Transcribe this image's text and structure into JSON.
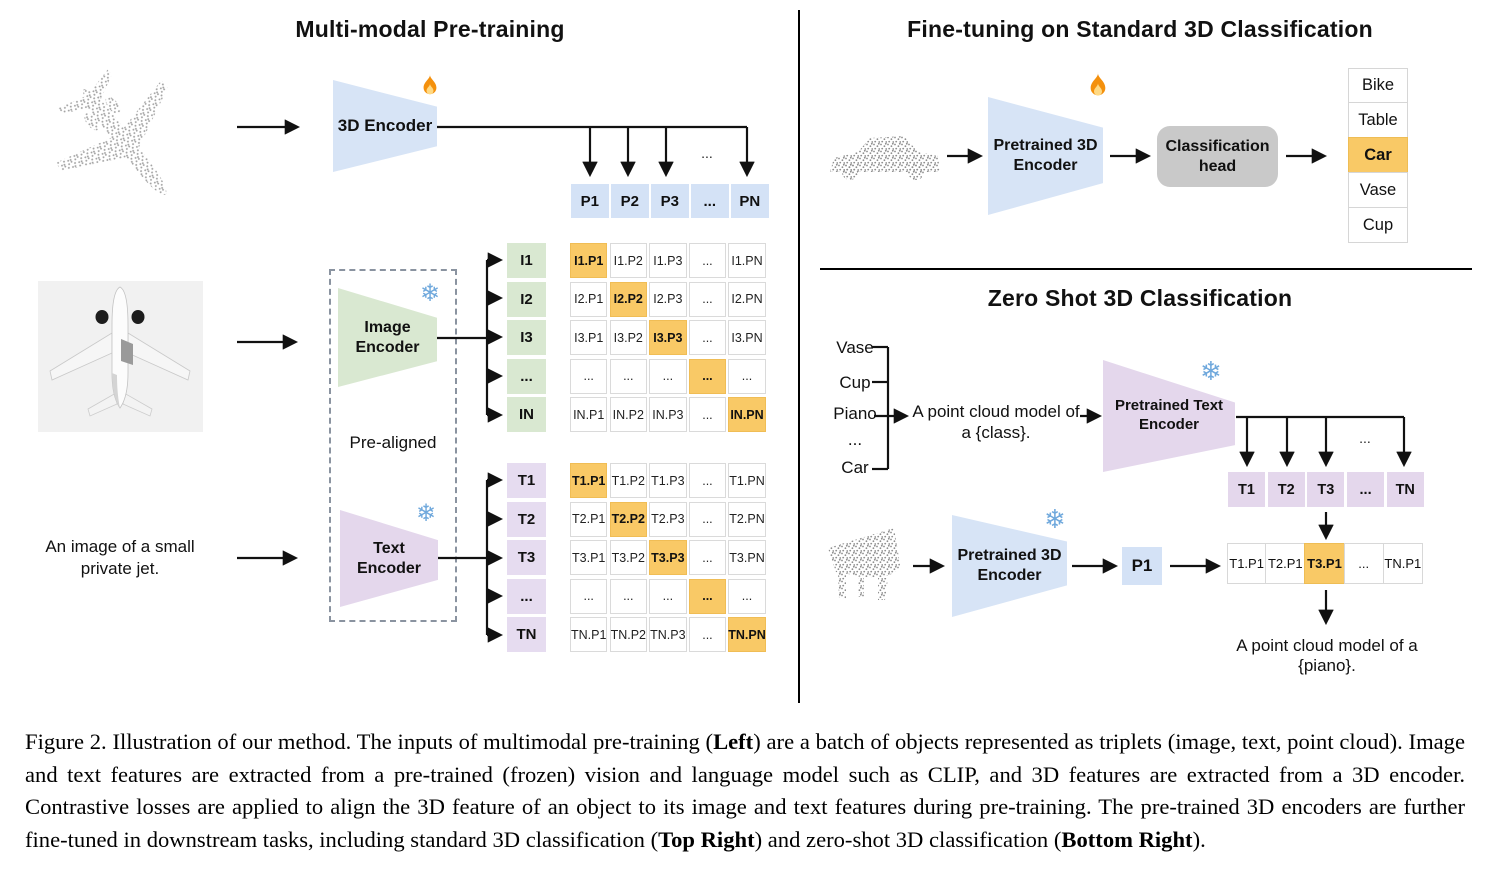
{
  "pretraining": {
    "title": "Multi-modal Pre-training",
    "encoder3d_label": "3D Encoder",
    "image_encoder_label": "Image Encoder",
    "text_encoder_label": "Text Encoder",
    "pre_aligned_label": "Pre-aligned",
    "text_input": "An image of a small private jet.",
    "dots": "...",
    "p_row": [
      "P1",
      "P2",
      "P3",
      "...",
      "PN"
    ],
    "image_labels": [
      "I1",
      "I2",
      "I3",
      "...",
      "IN"
    ],
    "text_labels": [
      "T1",
      "T2",
      "T3",
      "...",
      "TN"
    ],
    "image_matrix": [
      [
        "I1.P1",
        "I1.P2",
        "I1.P3",
        "...",
        "I1.PN"
      ],
      [
        "I2.P1",
        "I2.P2",
        "I2.P3",
        "...",
        "I2.PN"
      ],
      [
        "I3.P1",
        "I3.P2",
        "I3.P3",
        "...",
        "I3.PN"
      ],
      [
        "...",
        "...",
        "...",
        "...",
        "..."
      ],
      [
        "IN.P1",
        "IN.P2",
        "IN.P3",
        "...",
        "IN.PN"
      ]
    ],
    "text_matrix": [
      [
        "T1.P1",
        "T1.P2",
        "T1.P3",
        "...",
        "T1.PN"
      ],
      [
        "T2.P1",
        "T2.P2",
        "T2.P3",
        "...",
        "T2.PN"
      ],
      [
        "T3.P1",
        "T3.P2",
        "T3.P3",
        "...",
        "T3.PN"
      ],
      [
        "...",
        "...",
        "...",
        "...",
        "..."
      ],
      [
        "TN.P1",
        "TN.P2",
        "TN.P3",
        "...",
        "TN.PN"
      ]
    ]
  },
  "finetune": {
    "title": "Fine-tuning on Standard 3D Classification",
    "encoder_label": "Pretrained 3D Encoder",
    "head_label": "Classification head",
    "classes": [
      "Bike",
      "Table",
      "Car",
      "Vase",
      "Cup"
    ],
    "highlighted_class": "Car"
  },
  "zeroshot": {
    "title": "Zero Shot 3D Classification",
    "classes": [
      "Vase",
      "Cup",
      "Piano",
      "...",
      "Car"
    ],
    "prompt_line1": "A point cloud model of",
    "prompt_line2": "a {class}.",
    "text_encoder_label": "Pretrained Text Encoder",
    "encoder3d_label": "Pretrained 3D Encoder",
    "p1_label": "P1",
    "dots": "...",
    "t_row": [
      "T1",
      "T2",
      "T3",
      "...",
      "TN"
    ],
    "tp_row": [
      "T1.P1",
      "T2.P1",
      "T3.P1",
      "...",
      "TN.P1"
    ],
    "highlighted_cell": "T3.P1",
    "result_text": "A point cloud model of a {piano}."
  },
  "caption": {
    "label": "Figure 2.",
    "segments": [
      {
        "text": "Figure 2. Illustration of our method.  The inputs of multimodal pre-training (",
        "bold": false
      },
      {
        "text": "Left",
        "bold": true
      },
      {
        "text": ") are a batch of objects represented as triplets (image, text, point cloud).  Image and text features are extracted from a pre-trained (frozen) vision and language model such as CLIP, and 3D features are extracted from a 3D encoder.  Contrastive losses are applied to align the 3D feature of an object to its image and text features during pre-training.  The pre-trained 3D encoders are further fine-tuned in downstream tasks, including standard 3D classification (",
        "bold": false
      },
      {
        "text": "Top Right",
        "bold": true
      },
      {
        "text": ") and zero-shot 3D classification (",
        "bold": false
      },
      {
        "text": "Bottom Right",
        "bold": true
      },
      {
        "text": ").",
        "bold": false
      }
    ]
  },
  "icons": {
    "fire": "🔥",
    "snowflake": "❄"
  },
  "colors": {
    "blue": "#d4e2f6",
    "green": "#d9e8d1",
    "purple": "#e4d7ec",
    "highlight_orange": "#f9c966",
    "head_gray": "#c9c9c9"
  }
}
